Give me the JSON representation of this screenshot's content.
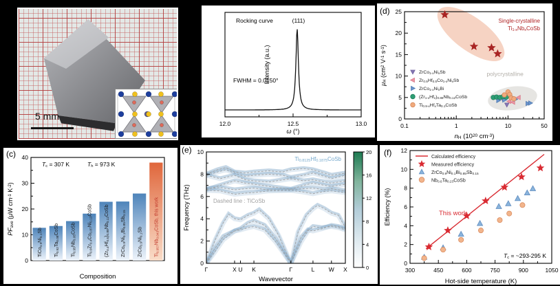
{
  "labels": {
    "c": "(c)",
    "d": "(d)",
    "e": "(e)",
    "f": "(f)"
  },
  "photo": {
    "scale_bar": "5 mm",
    "atoms": {
      "blue": "#1e3f9e",
      "yellow": "#f0c11e",
      "red": "#e06a5a",
      "purple": "#5a5a92",
      "polyhedron": "#a7a7ad",
      "poly_edge": "#6e6e74"
    }
  },
  "chart_data": [
    {
      "id": "rocking",
      "type": "line",
      "title": "Rocking curve",
      "peak_label": "(111)",
      "annotation": "FWHM = 0.0150°",
      "xlabel": "`ω` (°)",
      "ylabel": "Intensity (a.u.)",
      "xlim": [
        12.0,
        13.0
      ],
      "xticks": [
        "12.0",
        "12.5",
        "13.0"
      ],
      "xminor": [
        12.25,
        12.75
      ],
      "peak": {
        "center": 12.53,
        "fwhm": 0.015
      },
      "line_color": "#111111"
    },
    {
      "id": "pf",
      "type": "bar",
      "xlabel": "Composition",
      "ylabel": "`PF`_{ave} (μW cm^{-1} K^{-2})",
      "ylim": [
        0,
        40
      ],
      "yticks": [
        0,
        10,
        20,
        30,
        40
      ],
      "yminor": [
        5,
        15,
        25,
        35
      ],
      "annotations": [
        "`T`_{c} = 307 K",
        "`T`_{h} = 973 K"
      ],
      "categories": [
        "TiCo_{0.9}Ni_{0.1}Sb",
        "Ti_{0.92}Ta_{0.08}CoSb",
        "Ti_{0.95}Nb_{0.05}CoSb",
        "Ti_{0.6}Zr_{0.4}Co_{0.87}Ni_{0.13}CoSb",
        "(Zr_{0.4}Hf_{0.6})_{0.88}Nb_{0.12}CoSb",
        "ZrCo_{0.9}Ni_{0.1}Bi_{0.85}Sb_{0.15}",
        "ZrCo_{0.9}Ni_{0.1}Sb",
        "Ti_{0.957}Nb_{0.043}CoSb, this work"
      ],
      "values": [
        12.7,
        13.4,
        15.3,
        18.2,
        22.8,
        22.9,
        26.0,
        38.0
      ],
      "highlight_index": 7,
      "bar_colors": {
        "blue_top": "#4e84ba",
        "blue_bottom": "#eef4fb",
        "orange_top": "#e0673c",
        "orange_bottom": "#f9ddc9",
        "label_color": "#1a1a1a",
        "highlight_label_color": "#c0392b"
      }
    },
    {
      "id": "mobility",
      "type": "scatter-log",
      "xlabel": "`n`_{H} (10^{20} cm^{-3})",
      "ylabel": "`μ`_{H} (cm^{2} V^{-1} s^{-1})",
      "xlim": [
        0.1,
        50
      ],
      "xticks": [
        "0.1",
        "1",
        "10",
        "50"
      ],
      "ylim": [
        0,
        25
      ],
      "yticks": [
        0,
        5,
        10,
        15,
        20,
        25
      ],
      "annotations": [
        {
          "text": "Single-crystalline",
          "color": "#b02425"
        },
        {
          "text": "Ti_{1-x}Nb_{x}CoSb",
          "color": "#b02425"
        },
        {
          "text": "polycrystalline",
          "color": "#b3afa9"
        }
      ],
      "series": [
        {
          "name": "single-crystal stars",
          "marker": "star",
          "color": "#a82423",
          "in_legend": false,
          "points": [
            [
              0.6,
              24.3
            ],
            [
              2.2,
              16.9
            ],
            [
              4.8,
              16.6
            ],
            [
              6.3,
              15.2
            ]
          ]
        },
        {
          "name": "ZrCo_{1-x}Ni_{x}Sb",
          "marker": "tri-down",
          "color": "#8677b3",
          "edge": "#6d5f9e",
          "in_legend": true,
          "points": [
            [
              8,
              4.5
            ],
            [
              9.5,
              3.3
            ]
          ]
        },
        {
          "name": "Zr_{0.5}Hf_{0.5}Co_{1-x}Ni_{x}Sb",
          "marker": "tri-left",
          "color": "#ee96a4",
          "edge": "#d87787",
          "in_legend": true,
          "points": [
            [
              10.5,
              4.1
            ],
            [
              12.5,
              3.9
            ],
            [
              16,
              5.0
            ]
          ]
        },
        {
          "name": "ZrCo_{1-x}Ni_{x}Bi",
          "marker": "tri-right",
          "color": "#6a94cc",
          "edge": "#4f7ab2",
          "in_legend": true,
          "points": [
            [
              6.5,
              4.3
            ],
            [
              8.5,
              4.4
            ],
            [
              12,
              5.1
            ],
            [
              14,
              4.6
            ],
            [
              24,
              3.6
            ],
            [
              27,
              3.7
            ]
          ]
        },
        {
          "name": "(Zr_{1-x}Hf_{x})_{0.88}Nb_{0.12}CoSb",
          "marker": "circle",
          "color": "#2d9e74",
          "edge": "#1f7d5a",
          "in_legend": true,
          "points": [
            [
              5.2,
              5.0
            ],
            [
              6,
              5.1
            ],
            [
              7,
              5.0
            ],
            [
              8,
              5.2
            ],
            [
              9.3,
              5.1
            ]
          ]
        },
        {
          "name": "Ti_{0.9-x}Hf_{x}Ta_{0.1}CoSb",
          "marker": "circle",
          "color": "#f0aa7d",
          "edge": "#d6895c",
          "in_legend": true,
          "points": [
            [
              8.5,
              5.6
            ],
            [
              10,
              6.3
            ],
            [
              10.8,
              5.7
            ],
            [
              11.5,
              4.9
            ],
            [
              13,
              4.7
            ]
          ]
        }
      ],
      "ellipse_colors": {
        "single": "rgba(233,150,112,0.42)",
        "poly": "rgba(190,186,180,0.38)"
      }
    },
    {
      "id": "phonon",
      "type": "phonon",
      "title": "Ti_{0.8125}Hf_{0.1875}CoSb",
      "title_color": "#74a8cc",
      "subtitle": "Dashed line : TiCoSb",
      "subtitle_color": "#a0a0a0",
      "xlabel": "Wavevector",
      "ylabel": "Frequency (THz)",
      "ylim": [
        0,
        10
      ],
      "yticks": [
        0,
        2,
        4,
        6,
        8,
        10
      ],
      "yminor": [
        1,
        3,
        5,
        7,
        9
      ],
      "kpoints": [
        {
          "label": "Γ",
          "x": 0
        },
        {
          "label": "X",
          "x": 0.203
        },
        {
          "label": "U",
          "x": 0.245
        },
        {
          "label": "K",
          "x": 0.342
        },
        {
          "label": "Γ",
          "x": 0.608
        },
        {
          "label": "L",
          "x": 0.767
        },
        {
          "label": "W",
          "x": 0.9
        },
        {
          "label": "X",
          "x": 1
        }
      ],
      "band_fuzz_color": "#7da4c8",
      "band_dash_color": "#a3a3a3",
      "bands": [
        [
          [
            0,
            0
          ],
          [
            0.06,
            1.0
          ],
          [
            0.12,
            2.1
          ],
          [
            0.203,
            2.9
          ],
          [
            0.245,
            3.0
          ],
          [
            0.3,
            3.2
          ],
          [
            0.342,
            3.3
          ],
          [
            0.42,
            3.0
          ],
          [
            0.5,
            1.9
          ],
          [
            0.608,
            0
          ],
          [
            0.68,
            1.9
          ],
          [
            0.73,
            2.9
          ],
          [
            0.767,
            3.3
          ],
          [
            0.83,
            3.2
          ],
          [
            0.9,
            3.3
          ],
          [
            0.95,
            3.2
          ],
          [
            1,
            3.0
          ]
        ],
        [
          [
            0,
            0
          ],
          [
            0.06,
            1.3
          ],
          [
            0.12,
            2.4
          ],
          [
            0.203,
            2.9
          ],
          [
            0.245,
            3.1
          ],
          [
            0.3,
            3.6
          ],
          [
            0.342,
            3.8
          ],
          [
            0.42,
            3.4
          ],
          [
            0.5,
            2.2
          ],
          [
            0.608,
            0
          ],
          [
            0.68,
            2.3
          ],
          [
            0.73,
            3.0
          ],
          [
            0.767,
            2.9
          ],
          [
            0.83,
            3.1
          ],
          [
            0.9,
            3.4
          ],
          [
            0.95,
            3.3
          ],
          [
            1,
            3.1
          ]
        ],
        [
          [
            0,
            0
          ],
          [
            0.06,
            2.0
          ],
          [
            0.12,
            3.6
          ],
          [
            0.16,
            4.4
          ],
          [
            0.203,
            4.0
          ],
          [
            0.245,
            3.9
          ],
          [
            0.3,
            4.3
          ],
          [
            0.342,
            4.5
          ],
          [
            0.38,
            4.8
          ],
          [
            0.45,
            4.0
          ],
          [
            0.52,
            2.5
          ],
          [
            0.608,
            0
          ],
          [
            0.66,
            2.8
          ],
          [
            0.72,
            4.3
          ],
          [
            0.767,
            4.9
          ],
          [
            0.8,
            5.2
          ],
          [
            0.85,
            4.9
          ],
          [
            0.9,
            4.5
          ],
          [
            0.95,
            4.3
          ],
          [
            1,
            3.2
          ]
        ],
        [
          [
            0,
            6.55
          ],
          [
            0.1,
            6.5
          ],
          [
            0.203,
            6.2
          ],
          [
            0.28,
            6.3
          ],
          [
            0.342,
            6.35
          ],
          [
            0.45,
            6.5
          ],
          [
            0.608,
            6.55
          ],
          [
            0.7,
            6.4
          ],
          [
            0.767,
            6.25
          ],
          [
            0.85,
            6.45
          ],
          [
            0.9,
            6.5
          ],
          [
            1,
            6.35
          ]
        ],
        [
          [
            0,
            6.7
          ],
          [
            0.1,
            6.8
          ],
          [
            0.203,
            6.6
          ],
          [
            0.28,
            6.7
          ],
          [
            0.342,
            6.75
          ],
          [
            0.45,
            6.6
          ],
          [
            0.608,
            6.6
          ],
          [
            0.7,
            6.7
          ],
          [
            0.767,
            6.75
          ],
          [
            0.85,
            6.6
          ],
          [
            0.9,
            6.7
          ],
          [
            1,
            6.5
          ]
        ],
        [
          [
            0,
            6.6
          ],
          [
            0.1,
            7.0
          ],
          [
            0.203,
            7.4
          ],
          [
            0.28,
            7.2
          ],
          [
            0.342,
            7.1
          ],
          [
            0.45,
            6.9
          ],
          [
            0.608,
            6.65
          ],
          [
            0.7,
            7.0
          ],
          [
            0.767,
            7.2
          ],
          [
            0.85,
            7.0
          ],
          [
            0.9,
            6.9
          ],
          [
            1,
            7.1
          ]
        ],
        [
          [
            0,
            7.9
          ],
          [
            0.08,
            8.2
          ],
          [
            0.14,
            8.4
          ],
          [
            0.203,
            8.1
          ],
          [
            0.28,
            7.8
          ],
          [
            0.342,
            7.9
          ],
          [
            0.45,
            8.0
          ],
          [
            0.55,
            7.9
          ],
          [
            0.608,
            7.7
          ],
          [
            0.7,
            7.9
          ],
          [
            0.767,
            8.1
          ],
          [
            0.85,
            7.8
          ],
          [
            0.9,
            7.6
          ],
          [
            1,
            7.9
          ]
        ],
        [
          [
            0,
            8.0
          ],
          [
            0.08,
            8.4
          ],
          [
            0.14,
            8.6
          ],
          [
            0.203,
            8.2
          ],
          [
            0.28,
            8.1
          ],
          [
            0.342,
            8.2
          ],
          [
            0.45,
            8.3
          ],
          [
            0.55,
            8.2
          ],
          [
            0.608,
            8.4
          ],
          [
            0.7,
            8.5
          ],
          [
            0.767,
            8.4
          ],
          [
            0.85,
            8.1
          ],
          [
            0.9,
            7.9
          ],
          [
            1,
            8.1
          ]
        ],
        [
          [
            0,
            7.9
          ],
          [
            0.1,
            7.6
          ],
          [
            0.203,
            7.9
          ],
          [
            0.28,
            7.5
          ],
          [
            0.342,
            7.4
          ],
          [
            0.45,
            7.3
          ],
          [
            0.608,
            7.6
          ],
          [
            0.7,
            7.4
          ],
          [
            0.767,
            7.5
          ],
          [
            0.85,
            7.3
          ],
          [
            0.9,
            7.2
          ],
          [
            1,
            7.4
          ]
        ]
      ],
      "colorbar": {
        "ticks": [
          0,
          4,
          8,
          12,
          16,
          20
        ],
        "stops": [
          "#ffffff",
          "#dce8ee",
          "#b3cdd9",
          "#7fb39b",
          "#1e7b52"
        ]
      }
    },
    {
      "id": "efficiency",
      "type": "scatter-linear",
      "xlabel": "Hot-side temperature (K)",
      "ylabel": "Efficiency (%)",
      "xlim": [
        300,
        1050
      ],
      "xticks": [
        300,
        450,
        600,
        750,
        900,
        1050
      ],
      "ylim": [
        0,
        12
      ],
      "yticks": [
        0,
        2,
        4,
        6,
        8,
        10,
        12
      ],
      "annotations": [
        {
          "text": "This work",
          "color": "#d92b32"
        },
        {
          "text": "`T`_{c} = ~293-295 K",
          "color": "#000000"
        }
      ],
      "series": [
        {
          "name": "Calculated efficiency",
          "kind": "line",
          "color": "#d92b32",
          "points": [
            [
              385,
              1.55
            ],
            [
              1010,
              11.6
            ]
          ]
        },
        {
          "name": "Measured efficiency",
          "kind": "scatter",
          "marker": "star",
          "color": "#d92b32",
          "points": [
            [
              400,
              1.75
            ],
            [
              500,
              3.5
            ],
            [
              600,
              5.05
            ],
            [
              700,
              6.65
            ],
            [
              800,
              8.1
            ],
            [
              890,
              9.2
            ],
            [
              990,
              10.15
            ]
          ]
        },
        {
          "name": "ZrCo_{0.9}Ni_{0.1}Bi_{0.85}Sb_{0.15}",
          "kind": "scatter",
          "marker": "tri-up",
          "color": "#8ab4dc",
          "edge": "#5f8cbf",
          "points": [
            [
              375,
              0.65
            ],
            [
              475,
              1.65
            ],
            [
              570,
              3.1
            ],
            [
              670,
              4.25
            ],
            [
              770,
              6.05
            ],
            [
              820,
              6.35
            ],
            [
              870,
              6.9
            ],
            [
              920,
              7.5
            ],
            [
              950,
              7.95
            ]
          ]
        },
        {
          "name": "Nb_{0.6}Ta_{0.23}CoSb",
          "kind": "scatter",
          "marker": "circle",
          "color": "#f2b58c",
          "edge": "#d98b5f",
          "points": [
            [
              375,
              0.55
            ],
            [
              475,
              1.45
            ],
            [
              570,
              2.5
            ],
            [
              675,
              3.5
            ],
            [
              775,
              4.6
            ],
            [
              825,
              5.3
            ],
            [
              895,
              6.2
            ]
          ]
        }
      ]
    }
  ]
}
